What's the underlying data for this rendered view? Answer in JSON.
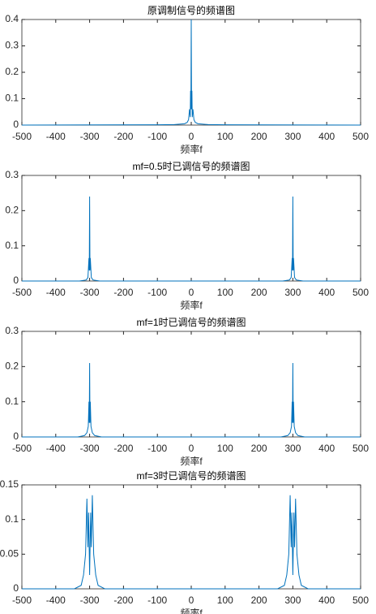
{
  "chart_data": [
    {
      "type": "line",
      "title": "原调制信号的频谱图",
      "xlabel": "频率f",
      "color": "#0072bd",
      "x": [
        -500,
        -100,
        -50,
        -20,
        -12,
        -8,
        -5,
        -3,
        -2,
        -1,
        0,
        1,
        2,
        3,
        5,
        8,
        12,
        20,
        50,
        100,
        500
      ],
      "values": [
        0,
        0.001,
        0.002,
        0.005,
        0.01,
        0.02,
        0.06,
        0.03,
        0.13,
        0.06,
        0.4,
        0.06,
        0.13,
        0.03,
        0.06,
        0.02,
        0.01,
        0.005,
        0.002,
        0.001,
        0
      ],
      "xlim": [
        -500,
        500
      ],
      "xticks": [
        -500,
        -400,
        -300,
        -200,
        -100,
        0,
        100,
        200,
        300,
        400,
        500
      ],
      "ylim": [
        0,
        0.4
      ],
      "yticks": [
        0,
        0.1,
        0.2,
        0.3,
        0.4
      ]
    },
    {
      "type": "line",
      "title": "mf=0.5时已调信号的频谱图",
      "xlabel": "频率f",
      "color": "#0072bd",
      "x": [
        -500,
        -330,
        -310,
        -305,
        -302,
        -301,
        -300,
        -299,
        -298,
        -295,
        -290,
        -270,
        0,
        270,
        290,
        295,
        298,
        299,
        300,
        301,
        302,
        305,
        310,
        330,
        500
      ],
      "values": [
        0,
        0,
        0.003,
        0.01,
        0.065,
        0.03,
        0.24,
        0.03,
        0.065,
        0.01,
        0.003,
        0,
        0,
        0,
        0.003,
        0.01,
        0.065,
        0.03,
        0.24,
        0.03,
        0.065,
        0.01,
        0.003,
        0,
        0
      ],
      "xlim": [
        -500,
        500
      ],
      "xticks": [
        -500,
        -400,
        -300,
        -200,
        -100,
        0,
        100,
        200,
        300,
        400,
        500
      ],
      "ylim": [
        0,
        0.3
      ],
      "yticks": [
        0,
        0.1,
        0.2,
        0.3
      ]
    },
    {
      "type": "line",
      "title": "mf=1时已调信号的频谱图",
      "xlabel": "频率f",
      "color": "#0072bd",
      "x": [
        -500,
        -335,
        -315,
        -308,
        -304,
        -302,
        -301,
        -300,
        -299,
        -298,
        -296,
        -292,
        -285,
        -265,
        0,
        265,
        285,
        292,
        296,
        298,
        299,
        300,
        301,
        302,
        304,
        308,
        315,
        335,
        500
      ],
      "values": [
        0,
        0,
        0.004,
        0.012,
        0.03,
        0.1,
        0.04,
        0.21,
        0.04,
        0.1,
        0.03,
        0.012,
        0.004,
        0,
        0,
        0,
        0.004,
        0.012,
        0.03,
        0.1,
        0.04,
        0.21,
        0.04,
        0.1,
        0.03,
        0.012,
        0.004,
        0,
        0
      ],
      "xlim": [
        -500,
        500
      ],
      "xticks": [
        -500,
        -400,
        -300,
        -200,
        -100,
        0,
        100,
        200,
        300,
        400,
        500
      ],
      "ylim": [
        0,
        0.3
      ],
      "yticks": [
        0,
        0.1,
        0.2,
        0.3
      ]
    },
    {
      "type": "line",
      "title": "mf=3时已调信号的频谱图",
      "xlabel": "频率f",
      "color": "#0072bd",
      "x": [
        -500,
        -345,
        -325,
        -318,
        -312,
        -308,
        -305,
        -303,
        -300,
        -297,
        -295,
        -292,
        -288,
        -282,
        -275,
        -255,
        0,
        255,
        275,
        282,
        288,
        292,
        295,
        297,
        300,
        303,
        305,
        308,
        312,
        318,
        325,
        345,
        500
      ],
      "values": [
        0,
        0,
        0.005,
        0.02,
        0.05,
        0.13,
        0.06,
        0.11,
        0.02,
        0.11,
        0.06,
        0.135,
        0.05,
        0.02,
        0.005,
        0,
        0,
        0,
        0.005,
        0.02,
        0.05,
        0.135,
        0.06,
        0.11,
        0.02,
        0.11,
        0.06,
        0.13,
        0.05,
        0.02,
        0.005,
        0,
        0
      ],
      "xlim": [
        -500,
        500
      ],
      "xticks": [
        -500,
        -400,
        -300,
        -200,
        -100,
        0,
        100,
        200,
        300,
        400,
        500
      ],
      "ylim": [
        0,
        0.15
      ],
      "yticks": [
        0,
        0.05,
        0.1,
        0.15
      ]
    }
  ]
}
